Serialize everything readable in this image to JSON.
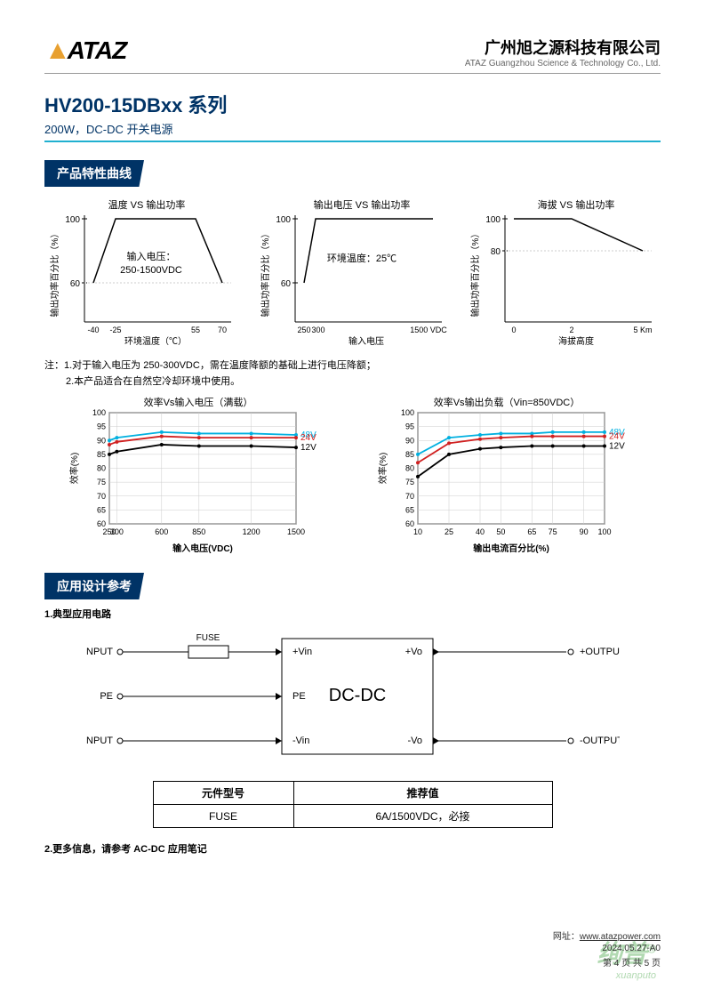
{
  "header": {
    "logo_text": "ATAZ",
    "company_cn": "广州旭之源科技有限公司",
    "company_en": "ATAZ Guangzhou Science & Technology Co., Ltd."
  },
  "title": {
    "model": "HV200-15DBxx 系列",
    "spec": "200W，DC-DC 开关电源"
  },
  "section1": "产品特性曲线",
  "chart1": {
    "title": "温度 VS 输出功率",
    "ylabel": "输出功率百分比（%）",
    "xlabel": "环境温度（℃）",
    "yticks": [
      60,
      100
    ],
    "xticks": [
      "-40",
      "-25",
      "55",
      "70"
    ],
    "note_l1": "输入电压：",
    "note_l2": "250-1500VDC",
    "points": [
      [
        -40,
        60
      ],
      [
        -25,
        100
      ],
      [
        55,
        100
      ],
      [
        70,
        60
      ]
    ]
  },
  "chart2": {
    "title": "输出电压 VS 输出功率",
    "ylabel": "输出功率百分比（%）",
    "xlabel": "输入电压",
    "yticks": [
      60,
      100
    ],
    "xticks": [
      "250",
      "300",
      "1500 VDC"
    ],
    "note": "环境温度：25℃",
    "points": [
      [
        250,
        60
      ],
      [
        300,
        100
      ],
      [
        1500,
        100
      ]
    ]
  },
  "chart3": {
    "title": "海拔 VS 输出功率",
    "ylabel": "输出功率百分比（%）",
    "xlabel": "海拔高度",
    "yticks": [
      80,
      100
    ],
    "xticks": [
      "0",
      "2",
      "5 Km"
    ],
    "points": [
      [
        0,
        100
      ],
      [
        2,
        100
      ],
      [
        5,
        80
      ]
    ]
  },
  "notes": {
    "prefix": "注：",
    "n1": "1.对于输入电压为 250-300VDC，需在温度降额的基础上进行电压降额；",
    "n2": "2.本产品适合在自然空冷却环境中使用。"
  },
  "chart4": {
    "title": "效率Vs输入电压（满载）",
    "ylabel": "效率(%)",
    "xlabel": "输入电压(VDC)",
    "yticks": [
      60,
      65,
      70,
      75,
      80,
      85,
      90,
      95,
      100
    ],
    "xticks": [
      250,
      300,
      600,
      850,
      1200,
      1500
    ],
    "series": [
      {
        "label": "48V",
        "color": "#00b0e0",
        "data": [
          [
            250,
            90
          ],
          [
            300,
            91
          ],
          [
            600,
            93
          ],
          [
            850,
            92.5
          ],
          [
            1200,
            92.5
          ],
          [
            1500,
            92
          ]
        ]
      },
      {
        "label": "24V",
        "color": "#d02020",
        "data": [
          [
            250,
            88.5
          ],
          [
            300,
            89.5
          ],
          [
            600,
            91.5
          ],
          [
            850,
            91
          ],
          [
            1200,
            91
          ],
          [
            1500,
            91
          ]
        ]
      },
      {
        "label": "12V",
        "color": "#000000",
        "data": [
          [
            250,
            85
          ],
          [
            300,
            86
          ],
          [
            600,
            88.5
          ],
          [
            850,
            88
          ],
          [
            1200,
            88
          ],
          [
            1500,
            87.5
          ]
        ]
      }
    ]
  },
  "chart5": {
    "title": "效率Vs输出负载（Vin=850VDC）",
    "ylabel": "效率(%)",
    "xlabel": "输出电流百分比(%)",
    "yticks": [
      60,
      65,
      70,
      75,
      80,
      85,
      90,
      95,
      100
    ],
    "xticks": [
      10,
      25,
      40,
      50,
      65,
      75,
      90,
      100
    ],
    "series": [
      {
        "label": "48V",
        "color": "#00b0e0",
        "data": [
          [
            10,
            85
          ],
          [
            25,
            91
          ],
          [
            40,
            92
          ],
          [
            50,
            92.5
          ],
          [
            65,
            92.5
          ],
          [
            75,
            93
          ],
          [
            90,
            93
          ],
          [
            100,
            93
          ]
        ]
      },
      {
        "label": "24V",
        "color": "#d02020",
        "data": [
          [
            10,
            82
          ],
          [
            25,
            89
          ],
          [
            40,
            90.5
          ],
          [
            50,
            91
          ],
          [
            65,
            91.5
          ],
          [
            75,
            91.5
          ],
          [
            90,
            91.5
          ],
          [
            100,
            91.5
          ]
        ]
      },
      {
        "label": "12V",
        "color": "#000000",
        "data": [
          [
            10,
            77
          ],
          [
            25,
            85
          ],
          [
            40,
            87
          ],
          [
            50,
            87.5
          ],
          [
            65,
            88
          ],
          [
            75,
            88
          ],
          [
            90,
            88
          ],
          [
            100,
            88
          ]
        ]
      }
    ]
  },
  "section2": "应用设计参考",
  "circuit": {
    "title": "1.典型应用电路",
    "fuse": "FUSE",
    "inp": "+INPUT",
    "inn": "-INPUT",
    "pe": "PE",
    "vinp": "+Vin",
    "vinn": "-Vin",
    "pein": "PE",
    "block": "DC-DC",
    "vop": "+Vo",
    "von": "-Vo",
    "outp": "+OUTPUT",
    "outn": "-OUTPUT"
  },
  "table": {
    "h1": "元件型号",
    "h2": "推荐值",
    "r1c1": "FUSE",
    "r1c2": "6A/1500VDC，必接"
  },
  "more_info": "2.更多信息，请参考 AC-DC 应用笔记",
  "footer": {
    "url_label": "网址：",
    "url": "www.atazpower.com",
    "date": "2024.05.27-A0",
    "page": "第 4 页 共 5 页"
  },
  "colors": {
    "brand_orange": "#e8a030",
    "brand_blue": "#003366",
    "brand_cyan": "#20b0d0"
  }
}
